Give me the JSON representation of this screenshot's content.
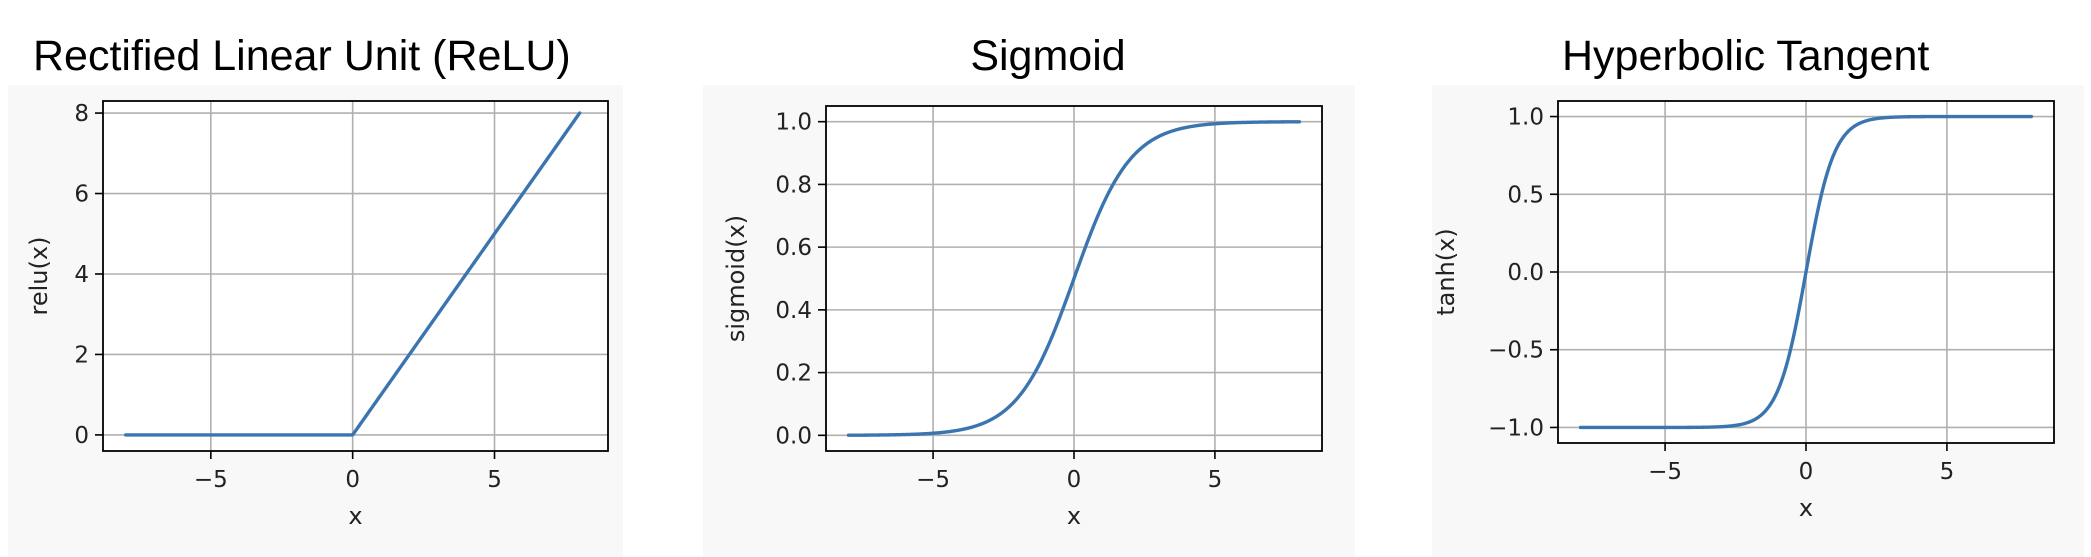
{
  "chart_data": [
    {
      "type": "line",
      "title": "Rectified Linear Unit (ReLU)",
      "xlabel": "x",
      "ylabel": "relu(x)",
      "xlim": [
        -8.8,
        9.0
      ],
      "ylim": [
        -0.4,
        8.3
      ],
      "xticks": [
        -5,
        0,
        5
      ],
      "xtick_labels": [
        "−5",
        "0",
        "5"
      ],
      "yticks": [
        0,
        2,
        4,
        6,
        8
      ],
      "ytick_labels": [
        "0",
        "2",
        "4",
        "6",
        "8"
      ],
      "grid": true,
      "function": "relu",
      "x_range": [
        -8,
        8
      ],
      "color": "#3a75af"
    },
    {
      "type": "line",
      "title": "Sigmoid",
      "xlabel": "x",
      "ylabel": "sigmoid(x)",
      "xlim": [
        -8.8,
        8.8
      ],
      "ylim": [
        -0.05,
        1.05
      ],
      "xticks": [
        -5,
        0,
        5
      ],
      "xtick_labels": [
        "−5",
        "0",
        "5"
      ],
      "yticks": [
        0.0,
        0.2,
        0.4,
        0.6,
        0.8,
        1.0
      ],
      "ytick_labels": [
        "0.0",
        "0.2",
        "0.4",
        "0.6",
        "0.8",
        "1.0"
      ],
      "grid": true,
      "function": "sigmoid",
      "x_range": [
        -8,
        8
      ],
      "color": "#3a75af"
    },
    {
      "type": "line",
      "title": "Hyperbolic Tangent",
      "xlabel": "x",
      "ylabel": "tanh(x)",
      "xlim": [
        -8.8,
        8.8
      ],
      "ylim": [
        -1.1,
        1.1
      ],
      "xticks": [
        -5,
        0,
        5
      ],
      "xtick_labels": [
        "−5",
        "0",
        "5"
      ],
      "yticks": [
        -1.0,
        -0.5,
        0.0,
        0.5,
        1.0
      ],
      "ytick_labels": [
        "−1.0",
        "−0.5",
        "0.0",
        "0.5",
        "1.0"
      ],
      "grid": true,
      "function": "tanh",
      "x_range": [
        -8,
        8
      ],
      "color": "#3a75af"
    }
  ]
}
